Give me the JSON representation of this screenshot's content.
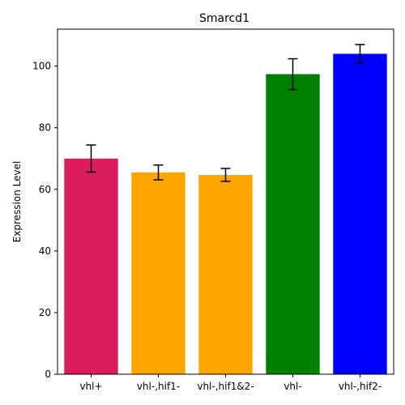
{
  "chart_data": {
    "type": "bar",
    "title": "Smarcd1",
    "xlabel": "",
    "ylabel": "Expression Level",
    "categories": [
      "vhl+",
      "vhl-,hif1-",
      "vhl-,hif1&2-",
      "vhl-",
      "vhl-,hif2-"
    ],
    "values": [
      70.0,
      65.5,
      64.7,
      97.4,
      104.0
    ],
    "errors": [
      4.4,
      2.4,
      2.1,
      5.0,
      3.0
    ],
    "colors": [
      "#dc1c5e",
      "#ffa500",
      "#ffa500",
      "#008000",
      "#0000ff"
    ],
    "ylim": [
      0,
      112
    ],
    "yticks": [
      0,
      20,
      40,
      60,
      80,
      100
    ],
    "grid": false,
    "legend": "none"
  }
}
